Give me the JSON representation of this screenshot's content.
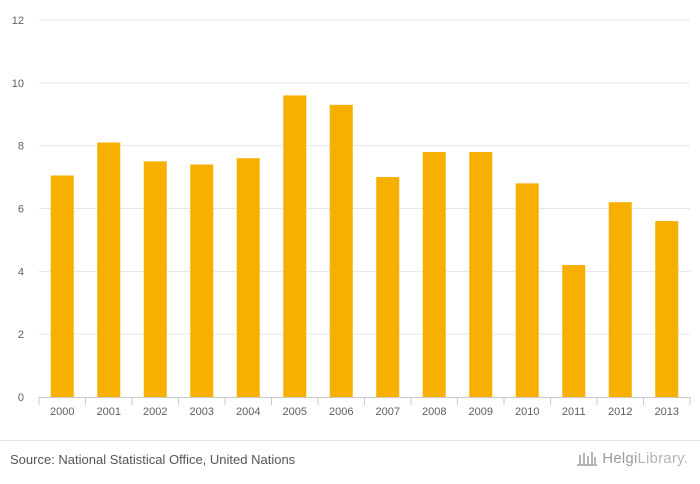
{
  "chart_data": {
    "type": "bar",
    "categories": [
      "2000",
      "2001",
      "2002",
      "2003",
      "2004",
      "2005",
      "2006",
      "2007",
      "2008",
      "2009",
      "2010",
      "2011",
      "2012",
      "2013"
    ],
    "values": [
      7.05,
      8.1,
      7.5,
      7.4,
      7.6,
      9.6,
      9.3,
      7.0,
      7.8,
      7.8,
      6.8,
      4.2,
      6.2,
      5.6
    ],
    "ylim": [
      0,
      12
    ],
    "yticks": [
      0,
      2,
      4,
      6,
      8,
      10,
      12
    ],
    "title": "",
    "xlabel": "",
    "ylabel": "",
    "grid": true,
    "bar_color": "#f8b000",
    "grid_color": "#e6e6e6"
  },
  "footer": {
    "source": "Source: National Statistical Office, United Nations",
    "logo_main": "Helgi",
    "logo_suffix": "Library."
  }
}
